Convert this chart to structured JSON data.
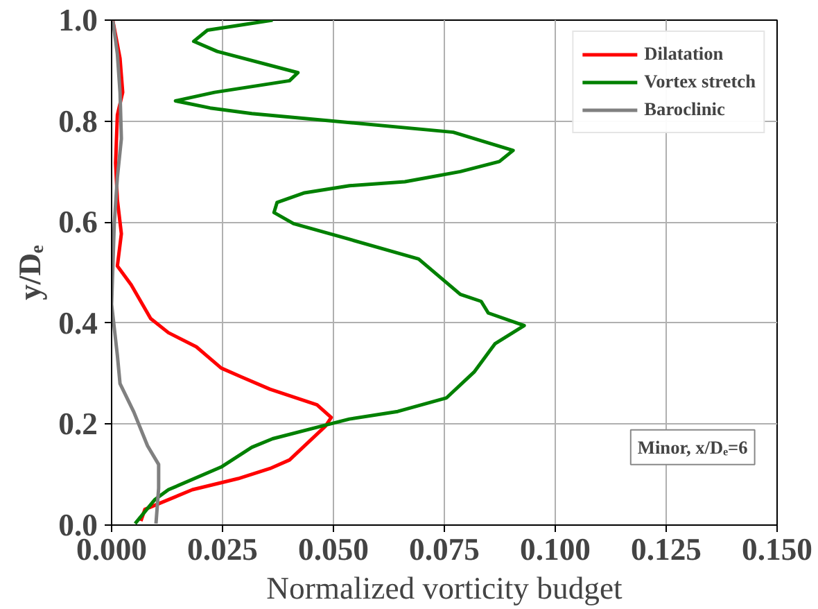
{
  "chart_data": {
    "type": "line",
    "xlabel": "Normalized vorticity budget",
    "ylabel": "y/Dₑ",
    "xlim": [
      0,
      0.15
    ],
    "ylim": [
      0,
      1.0
    ],
    "xticks": [
      {
        "value": 0,
        "label": "0.000"
      },
      0.025,
      {
        "value": 0.05,
        "label": "0.050"
      },
      {
        "value": 0.075,
        "label": "0.075"
      },
      {
        "value": 0.1,
        "label": "0.100"
      },
      {
        "value": 0.125,
        "label": "0.125"
      },
      {
        "value": 0.15,
        "label": "0.150"
      }
    ],
    "yticks": [
      {
        "value": 0,
        "label": "0.0"
      },
      0.2,
      0.4,
      0.6,
      0.8,
      {
        "value": 1.0,
        "label": "1.0"
      }
    ],
    "grid": true,
    "legend": "top right",
    "line_style": "solid",
    "marker": "none",
    "annotations": [
      "Minor, x/Dₑ=6"
    ],
    "series": [
      {
        "name": "Dilatation",
        "color": "#ff0000",
        "x": [
          0.0003,
          0.0019,
          0.0025,
          0.0013,
          0.0009,
          0.0013,
          0.0022,
          0.0013,
          0.0044,
          0.0088,
          0.0128,
          0.0191,
          0.0247,
          0.0291,
          0.0357,
          0.0463,
          0.0495,
          0.0482,
          0.0401,
          0.0357,
          0.0285,
          0.0182,
          0.0075,
          0.0066
        ],
        "values": [
          0.998,
          0.924,
          0.857,
          0.812,
          0.717,
          0.644,
          0.577,
          0.513,
          0.476,
          0.409,
          0.381,
          0.353,
          0.311,
          0.294,
          0.269,
          0.238,
          0.213,
          0.196,
          0.129,
          0.112,
          0.092,
          0.07,
          0.031,
          0.008
        ]
      },
      {
        "name": "Vortex stretch",
        "color": "#008000",
        "x": [
          0.0363,
          0.0216,
          0.0185,
          0.0238,
          0.042,
          0.0401,
          0.0232,
          0.0144,
          0.0222,
          0.0316,
          0.077,
          0.0905,
          0.0874,
          0.0786,
          0.0661,
          0.0536,
          0.0435,
          0.0373,
          0.0366,
          0.041,
          0.0536,
          0.0692,
          0.0786,
          0.0833,
          0.0849,
          0.093,
          0.0864,
          0.0817,
          0.0755,
          0.0645,
          0.0536,
          0.0473,
          0.0363,
          0.0316,
          0.0247,
          0.0128,
          0.0097,
          0.0053
        ],
        "values": [
          1.0,
          0.98,
          0.958,
          0.938,
          0.896,
          0.88,
          0.857,
          0.84,
          0.826,
          0.815,
          0.778,
          0.742,
          0.72,
          0.7,
          0.68,
          0.672,
          0.658,
          0.639,
          0.619,
          0.597,
          0.566,
          0.527,
          0.457,
          0.443,
          0.42,
          0.395,
          0.359,
          0.303,
          0.252,
          0.225,
          0.21,
          0.196,
          0.171,
          0.154,
          0.115,
          0.07,
          0.05,
          0.003
        ]
      },
      {
        "name": "Baroclinic",
        "color": "#808080",
        "x": [
          0.0003,
          0.0013,
          0.0019,
          0.0022,
          0.0013,
          0.0006,
          0.0,
          0.0013,
          0.0019,
          0.005,
          0.0081,
          0.0106,
          0.0106,
          0.01
        ],
        "values": [
          0.998,
          0.933,
          0.857,
          0.765,
          0.689,
          0.597,
          0.437,
          0.336,
          0.28,
          0.224,
          0.157,
          0.12,
          0.073,
          0.003
        ]
      }
    ]
  }
}
